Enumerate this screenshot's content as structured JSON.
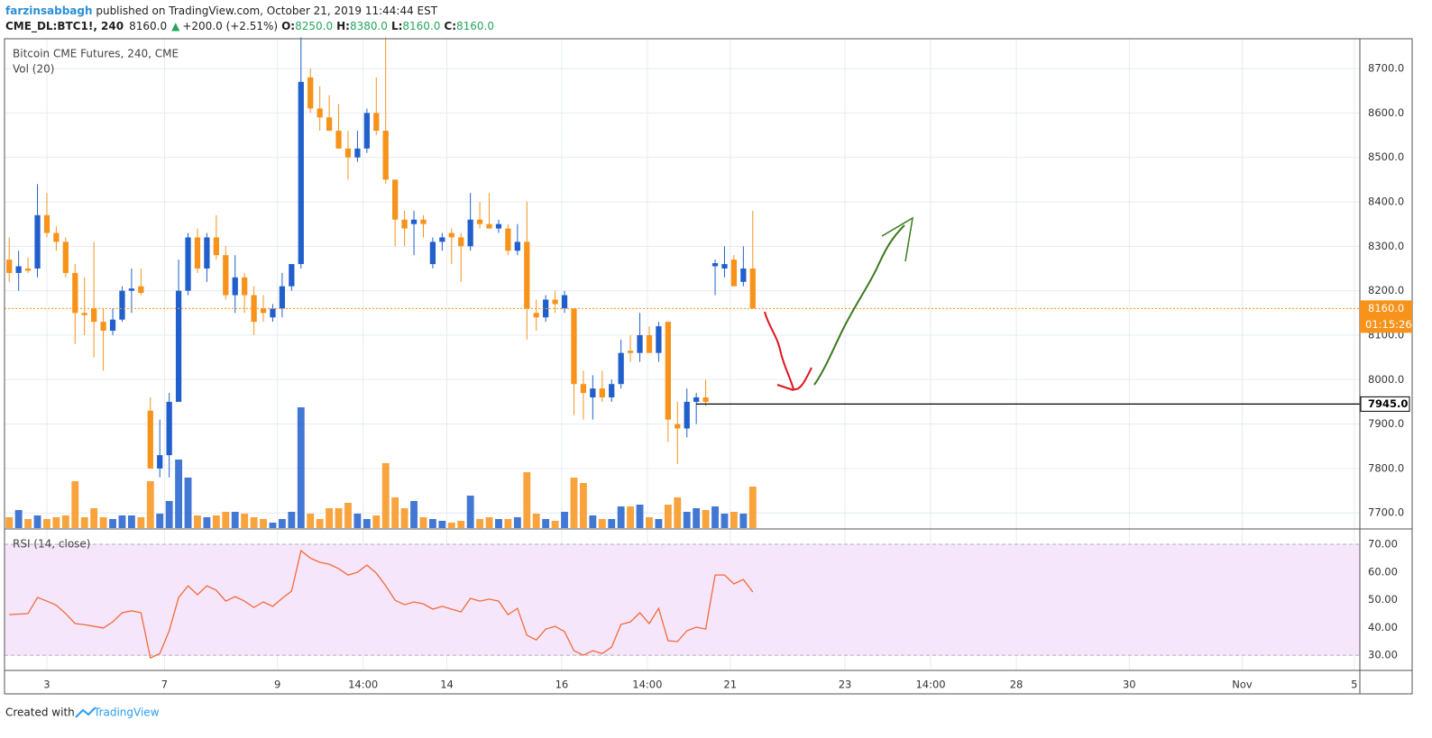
{
  "header": {
    "author": "farzinsabbagh",
    "published": " published on TradingView.com, October 21, 2019 11:44:44 EST",
    "symbol": "CME_DL:BTC1!, 240",
    "last": "8160.0",
    "arrow": "▲",
    "change": "+200.0 (+2.51%)",
    "o_label": "O:",
    "o": "8250.0",
    "h_label": "H:",
    "h": "8380.0",
    "l_label": "L:",
    "l": "8160.0",
    "c_label": "C:",
    "c": "8160.0"
  },
  "chart_data": {
    "type": "candlestick",
    "title": "Bitcoin CME Futures, 240, CME",
    "up_color": "#2160cc",
    "down_color": "#f7931a",
    "ohlc": [
      [
        8270,
        8320,
        8220,
        8240
      ],
      [
        8240,
        8290,
        8200,
        8255
      ],
      [
        8250,
        8275,
        8240,
        8245
      ],
      [
        8250,
        8440,
        8230,
        8370
      ],
      [
        8370,
        8420,
        8320,
        8330
      ],
      [
        8330,
        8345,
        8290,
        8310
      ],
      [
        8310,
        8320,
        8230,
        8240
      ],
      [
        8240,
        8260,
        8080,
        8150
      ],
      [
        8150,
        8230,
        8100,
        8145
      ],
      [
        8160,
        8310,
        8050,
        8130
      ],
      [
        8130,
        8160,
        8020,
        8110
      ],
      [
        8110,
        8160,
        8100,
        8135
      ],
      [
        8135,
        8210,
        8130,
        8200
      ],
      [
        8200,
        8250,
        8150,
        8205
      ],
      [
        8210,
        8250,
        8190,
        8195
      ],
      [
        7930,
        7960,
        7800,
        7800
      ],
      [
        7800,
        7910,
        7780,
        7830
      ],
      [
        7830,
        7970,
        7780,
        7950
      ],
      [
        7950,
        8270,
        7950,
        8200
      ],
      [
        8200,
        8330,
        8190,
        8320
      ],
      [
        8320,
        8340,
        8240,
        8250
      ],
      [
        8250,
        8330,
        8220,
        8320
      ],
      [
        8320,
        8370,
        8270,
        8280
      ],
      [
        8280,
        8300,
        8180,
        8190
      ],
      [
        8190,
        8280,
        8150,
        8230
      ],
      [
        8230,
        8240,
        8150,
        8190
      ],
      [
        8190,
        8210,
        8100,
        8130
      ],
      [
        8160,
        8190,
        8130,
        8150
      ],
      [
        8140,
        8170,
        8130,
        8160
      ],
      [
        8160,
        8240,
        8140,
        8210
      ],
      [
        8210,
        8260,
        8200,
        8260
      ],
      [
        8260,
        8770,
        8250,
        8670
      ],
      [
        8680,
        8700,
        8600,
        8610
      ],
      [
        8610,
        8660,
        8560,
        8590
      ],
      [
        8590,
        8640,
        8560,
        8560
      ],
      [
        8560,
        8620,
        8520,
        8520
      ],
      [
        8520,
        8560,
        8450,
        8500
      ],
      [
        8500,
        8560,
        8490,
        8520
      ],
      [
        8520,
        8610,
        8510,
        8600
      ],
      [
        8600,
        8680,
        8550,
        8560
      ],
      [
        8560,
        8770,
        8440,
        8450
      ],
      [
        8450,
        8450,
        8300,
        8360
      ],
      [
        8360,
        8380,
        8300,
        8340
      ],
      [
        8350,
        8380,
        8280,
        8360
      ],
      [
        8360,
        8370,
        8320,
        8350
      ],
      [
        8260,
        8320,
        8250,
        8310
      ],
      [
        8310,
        8330,
        8290,
        8320
      ],
      [
        8330,
        8340,
        8260,
        8320
      ],
      [
        8320,
        8330,
        8220,
        8300
      ],
      [
        8300,
        8420,
        8290,
        8360
      ],
      [
        8360,
        8400,
        8340,
        8350
      ],
      [
        8350,
        8420,
        8340,
        8340
      ],
      [
        8340,
        8360,
        8330,
        8350
      ],
      [
        8340,
        8350,
        8280,
        8290
      ],
      [
        8290,
        8350,
        8280,
        8310
      ],
      [
        8310,
        8400,
        8090,
        8160
      ],
      [
        8150,
        8180,
        8110,
        8140
      ],
      [
        8140,
        8190,
        8130,
        8180
      ],
      [
        8180,
        8200,
        8150,
        8170
      ],
      [
        8160,
        8200,
        8150,
        8190
      ],
      [
        8160,
        8160,
        7920,
        7990
      ],
      [
        7990,
        8020,
        7910,
        7970
      ],
      [
        7960,
        8010,
        7910,
        7980
      ],
      [
        7980,
        8020,
        7950,
        7960
      ],
      [
        7960,
        8000,
        7950,
        7990
      ],
      [
        7990,
        8090,
        7980,
        8060
      ],
      [
        8065,
        8100,
        8040,
        8060
      ],
      [
        8060,
        8150,
        8040,
        8100
      ],
      [
        8100,
        8120,
        8060,
        8060
      ],
      [
        8060,
        8130,
        8040,
        8120
      ],
      [
        8130,
        8130,
        7860,
        7910
      ],
      [
        7900,
        7950,
        7810,
        7890
      ],
      [
        7890,
        7980,
        7870,
        7950
      ],
      [
        7950,
        7970,
        7900,
        7960
      ],
      [
        7960,
        8000,
        7940,
        7950
      ],
      [
        8255,
        8270,
        8190,
        8262
      ],
      [
        8250,
        8300,
        8230,
        8260
      ],
      [
        8270,
        8280,
        8210,
        8210
      ],
      [
        8220,
        8300,
        8210,
        8250
      ],
      [
        8250,
        8380,
        8160,
        8160
      ]
    ],
    "volume": {
      "name": "Vol (20)",
      "values": [
        12,
        20,
        10,
        14,
        10,
        12,
        14,
        52,
        12,
        22,
        12,
        10,
        14,
        14,
        12,
        52,
        16,
        30,
        76,
        56,
        14,
        12,
        14,
        18,
        18,
        16,
        12,
        10,
        6,
        10,
        18,
        134,
        16,
        10,
        22,
        22,
        28,
        16,
        10,
        14,
        72,
        34,
        22,
        30,
        12,
        10,
        8,
        6,
        8,
        36,
        10,
        12,
        10,
        10,
        12,
        62,
        16,
        10,
        8,
        18,
        56,
        50,
        14,
        10,
        10,
        24,
        24,
        26,
        12,
        10,
        26,
        34,
        18,
        22,
        20,
        24,
        16,
        18,
        16,
        46
      ]
    },
    "rsi": {
      "name": "RSI (14, close)",
      "color": "#f26b38",
      "values": [
        44.6,
        44.8,
        45,
        50.8,
        49.5,
        48,
        45,
        41.4,
        41,
        40.4,
        39.8,
        42,
        45.3,
        46,
        45.3,
        29,
        30.6,
        38.8,
        50.8,
        55,
        51.8,
        55,
        53.4,
        49.5,
        51.1,
        49.5,
        47.2,
        49.2,
        47.6,
        50.5,
        53.1,
        67.7,
        65,
        63.5,
        62.8,
        61.2,
        58.9,
        59.9,
        62.5,
        59.6,
        55,
        49.8,
        48.2,
        49.2,
        48.5,
        46.6,
        47.6,
        46.6,
        45.6,
        50.5,
        49.5,
        50.2,
        49.5,
        44.6,
        46.9,
        37.2,
        35.5,
        39.4,
        40.4,
        38.5,
        31.6,
        30,
        31.6,
        30.6,
        32.9,
        41.1,
        42,
        45.3,
        41.4,
        46.9,
        35.2,
        34.9,
        38.8,
        40.1,
        39.4,
        58.9,
        58.9,
        55.7,
        57.3,
        52.8
      ],
      "ylim": [
        24.5,
        75.2
      ],
      "yticks": [
        {
          "value": 30,
          "label": "30.00"
        },
        {
          "value": 40,
          "label": "40.00"
        },
        {
          "value": 50,
          "label": "50.00"
        },
        {
          "value": 60,
          "label": "60.00"
        },
        {
          "value": 70,
          "label": "70.00"
        }
      ]
    },
    "ylim": [
      7666,
      8767
    ],
    "yticks": [
      {
        "value": 7700,
        "label": "7700.0"
      },
      {
        "value": 7800,
        "label": "7800.0"
      },
      {
        "value": 7900,
        "label": "7900.0"
      },
      {
        "value": 8000,
        "label": "8000.0"
      },
      {
        "value": 8100,
        "label": "8100.0"
      },
      {
        "value": 8200,
        "label": "8200.0"
      },
      {
        "value": 8300,
        "label": "8300.0"
      },
      {
        "value": 8400,
        "label": "8400.0"
      },
      {
        "value": 8500,
        "label": "8500.0"
      },
      {
        "value": 8600,
        "label": "8600.0"
      },
      {
        "value": 8700,
        "label": "8700.0"
      }
    ],
    "xlim": [
      -0.5,
      143.5
    ],
    "xticks": [
      {
        "value": 4,
        "label": "3"
      },
      {
        "value": 16.5,
        "label": "7"
      },
      {
        "value": 28.5,
        "label": "9"
      },
      {
        "value": 37.6,
        "label": "14:00"
      },
      {
        "value": 46.5,
        "label": "14"
      },
      {
        "value": 58.7,
        "label": "16"
      },
      {
        "value": 67.8,
        "label": "14:00"
      },
      {
        "value": 76.6,
        "label": "21"
      },
      {
        "value": 88.8,
        "label": "23"
      },
      {
        "value": 97.9,
        "label": "14:00"
      },
      {
        "value": 107,
        "label": "28"
      },
      {
        "value": 119,
        "label": "30"
      },
      {
        "value": 131,
        "label": "Nov"
      },
      {
        "value": 142.9,
        "label": "5"
      }
    ],
    "grid": true,
    "price_line": {
      "value": 8160,
      "label": "8160.0",
      "countdown": "01:15:26"
    },
    "level_line": {
      "value": 7945,
      "label": "7945.0"
    }
  },
  "footer": {
    "created": "Created with",
    "brand": "TradingView"
  }
}
